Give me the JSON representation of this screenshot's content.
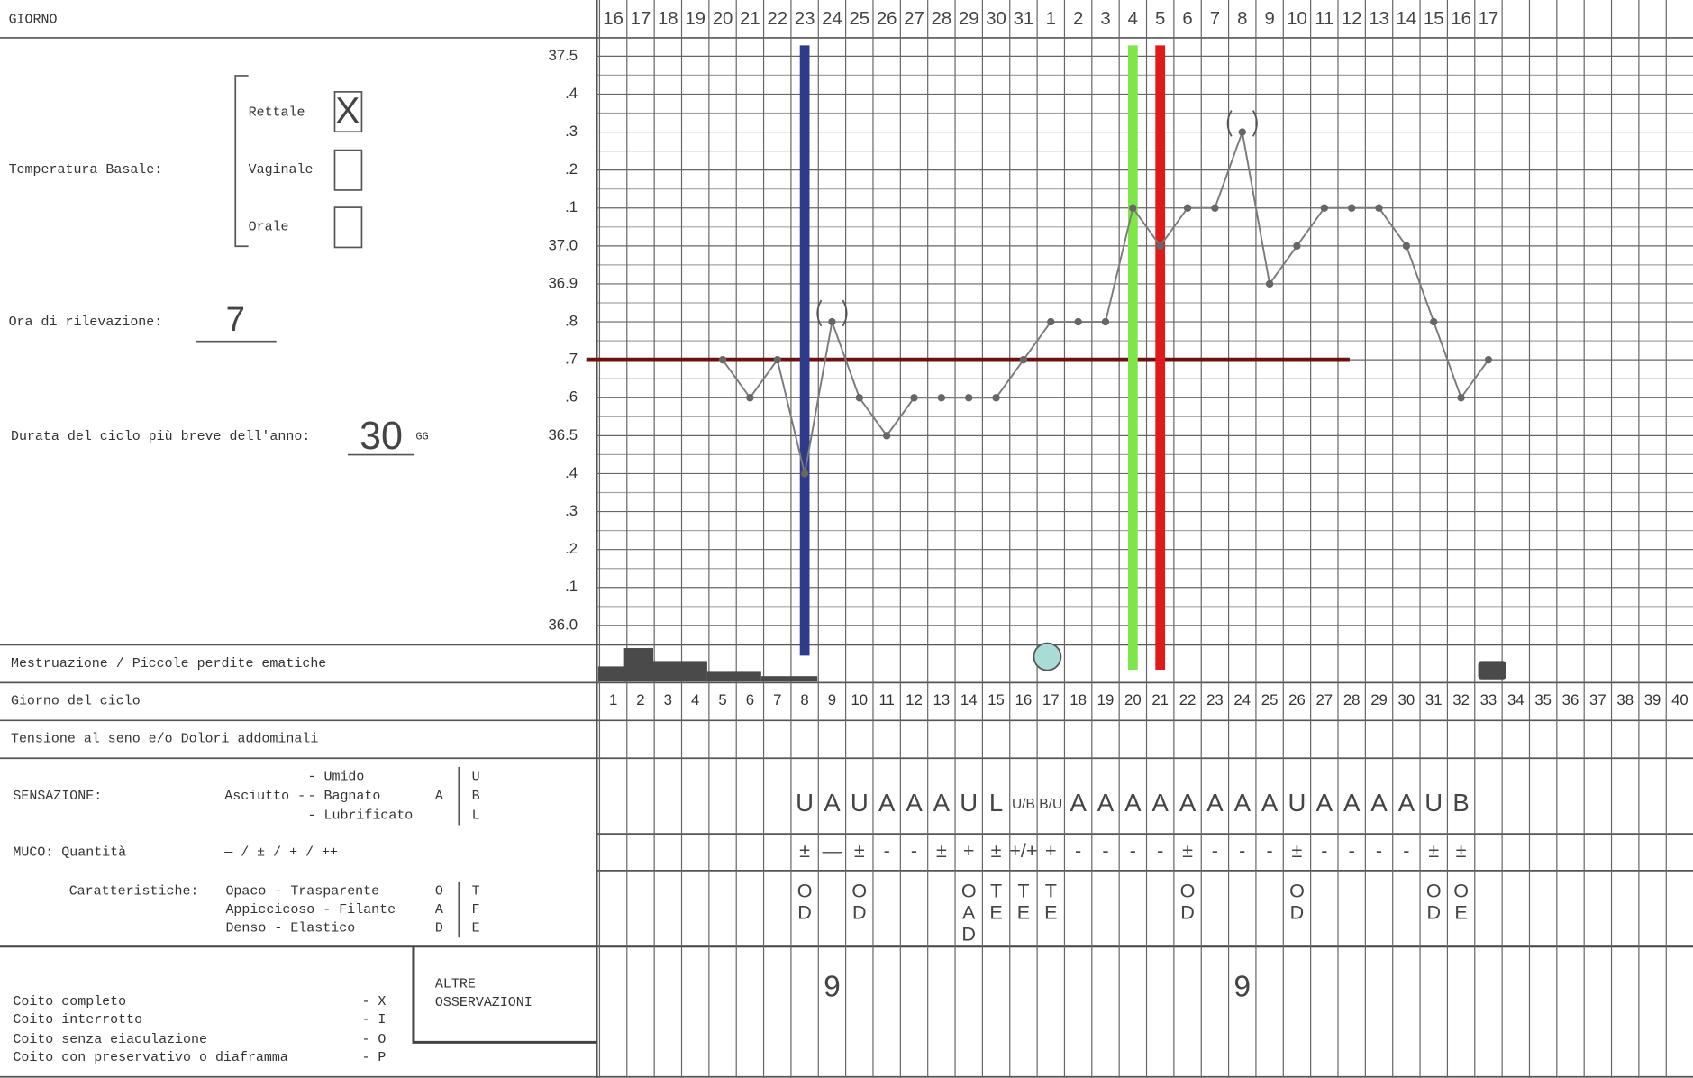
{
  "form": {
    "header": "GIORNO",
    "temperature_label": "Temperatura Basale:",
    "sites": [
      {
        "label": "Rettale",
        "mark": "X"
      },
      {
        "label": "Vaginale"
      },
      {
        "label": "Orale"
      }
    ],
    "time_label": "Ora di rilevazione:",
    "time_value": "7",
    "cycle_label": "Durata del ciclo più breve dell'anno:",
    "cycle_value": "30",
    "cycle_unit": "GG",
    "row_menstruation": "Mestruazione / Piccole perdite ematiche",
    "row_cycle_day": "Giorno del ciclo",
    "row_tension": "Tensione al seno e/o Dolori addominali",
    "sensation_label": "SENSAZIONE:",
    "sensation_dry": "Asciutto -",
    "sensation_dry_code": "A",
    "sensation_options": [
      "- Umido",
      "- Bagnato",
      "- Lubrificato"
    ],
    "sensation_codes": [
      "U",
      "B",
      "L"
    ],
    "mucus_label": "MUCO: Quantità",
    "mucus_scale": "— / ± / + / ++",
    "char_label": "Caratteristiche:",
    "char_pairs": [
      [
        "Opaco - Trasparente",
        "O",
        "T"
      ],
      [
        "Appiccicoso - Filante",
        "A",
        "F"
      ],
      [
        "Denso - Elastico",
        "D",
        "E"
      ]
    ],
    "intercourse": [
      [
        "Coito completo",
        "- X"
      ],
      [
        "Coito interrotto",
        "- I"
      ],
      [
        "Coito senza eiaculazione",
        "- O"
      ],
      [
        "Coito con preservativo o diaframma",
        "- P"
      ]
    ],
    "other_notes": [
      "ALTRE",
      "OSSERVAZIONI"
    ]
  },
  "chart_data": {
    "type": "line",
    "x": [
      1,
      2,
      3,
      4,
      5,
      6,
      7,
      8,
      9,
      10,
      11,
      12,
      13,
      14,
      15,
      16,
      17,
      18,
      19,
      20,
      21,
      22,
      23,
      24,
      25,
      26,
      27,
      28,
      29,
      30,
      31,
      32,
      33,
      34,
      35,
      36,
      37,
      38,
      39,
      40
    ],
    "dates": [
      16,
      17,
      18,
      19,
      20,
      21,
      22,
      23,
      24,
      25,
      26,
      27,
      28,
      29,
      30,
      31,
      1,
      2,
      3,
      4,
      5,
      6,
      7,
      8,
      9,
      10,
      11,
      12,
      13,
      14,
      15,
      16,
      17,
      null,
      null,
      null,
      null,
      null,
      null,
      null
    ],
    "values": [
      null,
      null,
      null,
      null,
      36.7,
      36.6,
      36.7,
      36.4,
      36.8,
      36.6,
      36.5,
      36.6,
      36.6,
      36.6,
      36.6,
      36.7,
      36.8,
      36.8,
      36.8,
      37.1,
      37,
      37.1,
      37.1,
      37.3,
      36.9,
      37,
      37.1,
      37.1,
      37.1,
      37,
      36.8,
      36.6,
      36.7,
      null,
      null,
      null,
      null,
      null,
      null,
      null
    ],
    "color": "#7a7a7a",
    "uncertain_days": [
      9,
      24
    ],
    "ylim": [
      36,
      37.5
    ],
    "yticks": [
      37.5,
      {
        "value": 37.4,
        "label": ".4"
      },
      {
        "value": 37.3,
        "label": ".3"
      },
      {
        "value": 37.2,
        "label": ".2"
      },
      {
        "value": 37.1,
        "label": ".1"
      },
      {
        "value": 37,
        "label": "37.0"
      },
      36.9,
      {
        "value": 36.8,
        "label": ".8"
      },
      {
        "value": 36.7,
        "label": ".7"
      },
      {
        "value": 36.6,
        "label": ".6"
      },
      36.5,
      {
        "value": 36.4,
        "label": ".4"
      },
      {
        "value": 36.3,
        "label": ".3"
      },
      {
        "value": 36.2,
        "label": ".2"
      },
      {
        "value": 36.1,
        "label": ".1"
      },
      {
        "value": 36,
        "label": "36.0"
      }
    ],
    "grid": true,
    "reference_lines": {
      "horizontal": {
        "value": 36.7,
        "color": "#6e1010"
      },
      "vertical": [
        {
          "day": 8,
          "color": "#2e3a8c"
        },
        {
          "day": 20,
          "color": "#7fe64a"
        },
        {
          "day": 21,
          "color": "#e01a1a"
        }
      ]
    },
    "sensation": [
      null,
      null,
      null,
      null,
      null,
      null,
      null,
      "U",
      "A",
      "U",
      "A",
      "A",
      "A",
      "U",
      "L",
      "U/B",
      "B/U",
      "A",
      "A",
      "A",
      "A",
      "A",
      "A",
      "A",
      "A",
      "U",
      "A",
      "A",
      "A",
      "A",
      "U",
      "B",
      null,
      null,
      null,
      null,
      null,
      null,
      null,
      null
    ],
    "mucus_quantity": [
      null,
      null,
      null,
      null,
      null,
      null,
      null,
      "±",
      "—",
      "±",
      "-",
      "-",
      "±",
      "+",
      "±",
      "+/+",
      "+",
      "-",
      "-",
      "-",
      "-",
      "±",
      "-",
      "-",
      "-",
      "±",
      "-",
      "-",
      "-",
      "-",
      "±",
      "±",
      null,
      null,
      null,
      null,
      null,
      null,
      null,
      null
    ],
    "mucus_characteristics": [
      null,
      null,
      null,
      null,
      null,
      null,
      null,
      [
        "O",
        "D"
      ],
      null,
      [
        "O",
        "D"
      ],
      null,
      null,
      null,
      [
        "O",
        "A",
        "D"
      ],
      [
        "T",
        "E"
      ],
      [
        "T",
        "E"
      ],
      [
        "T",
        "E"
      ],
      null,
      null,
      null,
      null,
      [
        "O",
        "D"
      ],
      null,
      null,
      null,
      [
        "O",
        "D"
      ],
      null,
      null,
      null,
      null,
      [
        "O",
        "D"
      ],
      [
        "O",
        "E"
      ],
      null,
      null,
      null,
      null,
      null,
      null,
      null,
      null
    ],
    "notes": [
      null,
      null,
      null,
      null,
      null,
      null,
      null,
      null,
      "9",
      null,
      null,
      null,
      null,
      null,
      null,
      null,
      null,
      null,
      null,
      null,
      null,
      null,
      null,
      "9",
      null,
      null,
      null,
      null,
      null,
      null,
      null,
      null,
      null,
      null,
      null,
      null,
      null,
      null,
      null,
      null
    ]
  }
}
